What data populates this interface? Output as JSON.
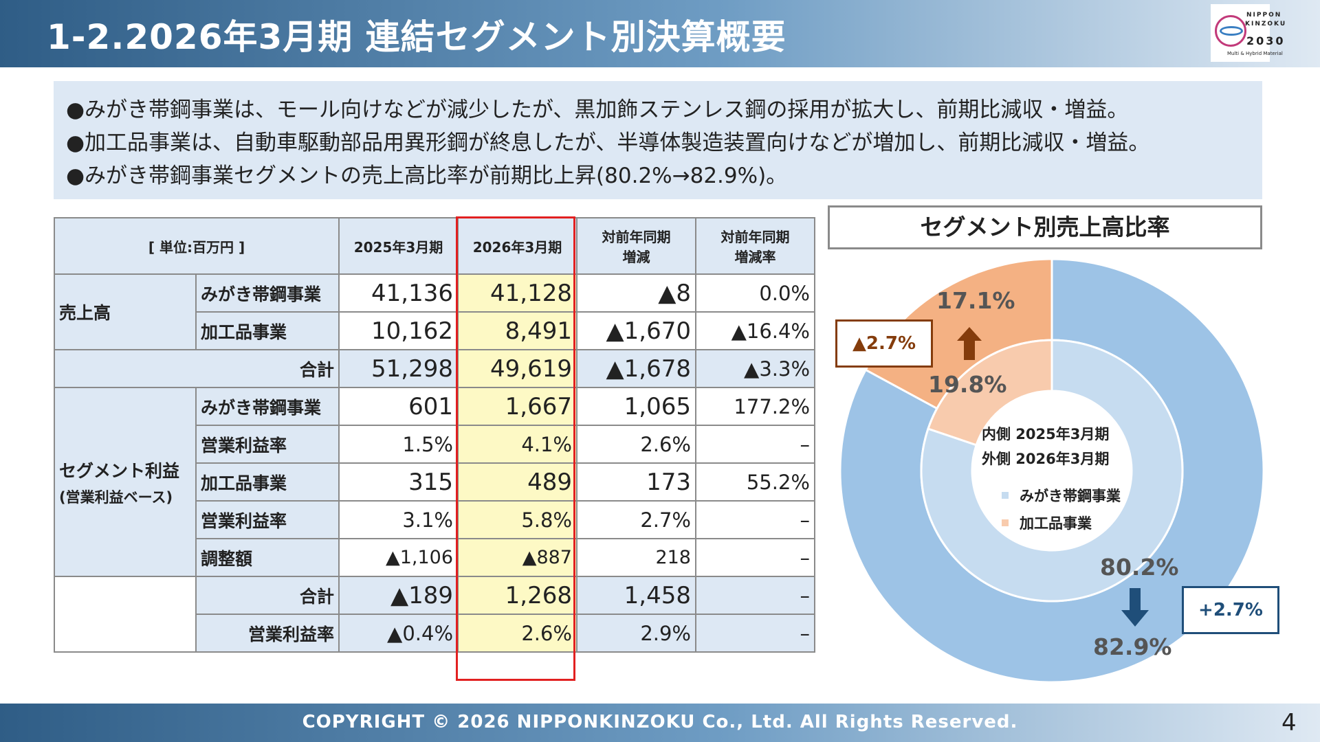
{
  "header": {
    "title": "1-2.2026年3月期 連結セグメント別決算概要"
  },
  "logo": {
    "line1": "NIPPON",
    "line2": "KINZOKU",
    "line3": "2030",
    "tagline": "Multi & Hybrid Material"
  },
  "summary": {
    "lines": [
      "●みがき帯鋼事業は、モール向けなどが減少したが、黒加飾ステンレス鋼の採用が拡大し、前期比減収・増益。",
      "●加工品事業は、自動車駆動部品用異形鋼が終息したが、半導体製造装置向けなどが増加し、前期比減収・増益。",
      "●みがき帯鋼事業セグメントの売上高比率が前期比上昇(80.2%→82.9%)。"
    ]
  },
  "table": {
    "unit": "[ 単位:百万円 ]",
    "col_prev": "2025年3月期",
    "col_curr": "2026年3月期",
    "col_diff_1": "対前年同期",
    "col_diff_2": "増減",
    "col_rate_1": "対前年同期",
    "col_rate_2": "増減率",
    "sales_group": "売上高",
    "profit_group_1": "セグメント利益",
    "profit_group_2": "(営業利益ベース)",
    "rows": [
      {
        "label": "みがき帯鋼事業",
        "prev": "41,136",
        "curr": "41,128",
        "diff": "▲8",
        "rate": "0.0%"
      },
      {
        "label": "加工品事業",
        "prev": "10,162",
        "curr": "8,491",
        "diff": "▲1,670",
        "rate": "▲16.4%"
      },
      {
        "label": "合計",
        "prev": "51,298",
        "curr": "49,619",
        "diff": "▲1,678",
        "rate": "▲3.3%"
      },
      {
        "label": "みがき帯鋼事業",
        "prev": "601",
        "curr": "1,667",
        "diff": "1,065",
        "rate": "177.2%"
      },
      {
        "label": "営業利益率",
        "prev": "1.5%",
        "curr": "4.1%",
        "diff": "2.6%",
        "rate": "–"
      },
      {
        "label": "加工品事業",
        "prev": "315",
        "curr": "489",
        "diff": "173",
        "rate": "55.2%"
      },
      {
        "label": "営業利益率",
        "prev": "3.1%",
        "curr": "5.8%",
        "diff": "2.7%",
        "rate": "–"
      },
      {
        "label": "調整額",
        "prev": "▲1,106",
        "curr": "▲887",
        "diff": "218",
        "rate": "–"
      },
      {
        "label": "合計",
        "prev": "▲189",
        "curr": "1,268",
        "diff": "1,458",
        "rate": "–"
      },
      {
        "label": "営業利益率",
        "prev": "▲0.4%",
        "curr": "2.6%",
        "diff": "2.9%",
        "rate": "–"
      }
    ]
  },
  "pie": {
    "title": "セグメント別売上高比率",
    "inner_label": "内側 2025年3月期",
    "outer_label": "外側 2026年3月期",
    "legend": [
      "みがき帯鋼事業",
      "加工品事業"
    ],
    "colors": {
      "migaki_outer": "#9dc3e6",
      "migaki_inner": "#c6dcf0",
      "kako_outer": "#f4b183",
      "kako_inner": "#f8cbad"
    },
    "inner_values": {
      "migaki": 80.2,
      "kako": 19.8
    },
    "outer_values": {
      "migaki": 82.9,
      "kako": 17.1
    },
    "labels": {
      "kako_outer": "17.1%",
      "kako_inner": "19.8%",
      "migaki_inner": "80.2%",
      "migaki_outer": "82.9%"
    },
    "callouts": {
      "kako": "▲2.7%",
      "migaki": "+2.7%"
    }
  },
  "chart_data": {
    "type": "pie",
    "title": "セグメント別売上高比率",
    "series": [
      {
        "name": "内側 2025年3月期",
        "categories": [
          "みがき帯鋼事業",
          "加工品事業"
        ],
        "values": [
          80.2,
          19.8
        ]
      },
      {
        "name": "外側 2026年3月期",
        "categories": [
          "みがき帯鋼事業",
          "加工品事業"
        ],
        "values": [
          82.9,
          17.1
        ]
      }
    ]
  },
  "footer": {
    "copyright": "COPYRIGHT © 2026 NIPPONKINZOKU Co., Ltd. All Rights Reserved.",
    "page": "4"
  }
}
